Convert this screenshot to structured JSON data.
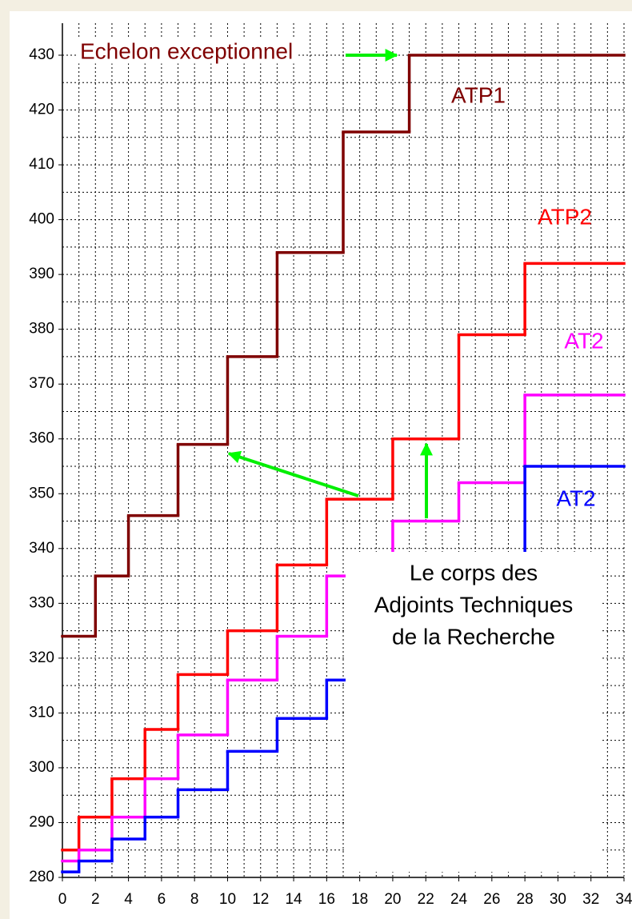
{
  "chart_data": {
    "type": "step",
    "annotations": [
      "Echelon exceptionnel",
      "ATP1",
      "ATP2",
      "AT2",
      "AT2"
    ],
    "box_text": [
      "Le corps des",
      "Adjoints Techniques",
      "de la Recherche"
    ],
    "series": [
      {
        "name": "ATP1",
        "color": "#7f0000",
        "x": [
          0,
          2,
          4,
          7,
          10,
          13,
          17,
          21
        ],
        "values": [
          324,
          335,
          346,
          359,
          375,
          394,
          416,
          430
        ]
      },
      {
        "name": "ATP2",
        "color": "#ff0000",
        "x": [
          0,
          1,
          3,
          5,
          7,
          10,
          13,
          16,
          20,
          24,
          28
        ],
        "values": [
          285,
          291,
          298,
          307,
          317,
          325,
          337,
          349,
          360,
          379,
          392
        ]
      },
      {
        "name": "AT2",
        "color": "#ff00ff",
        "x": [
          0,
          1,
          3,
          5,
          7,
          10,
          13,
          16,
          20,
          24,
          28
        ],
        "values": [
          283,
          285,
          291,
          298,
          306,
          316,
          324,
          335,
          345,
          352,
          368
        ]
      },
      {
        "name": "AT2",
        "color": "#0000ff",
        "x": [
          0,
          1,
          3,
          5,
          7,
          10,
          13,
          16,
          20,
          24,
          28
        ],
        "values": [
          281,
          283,
          287,
          291,
          296,
          303,
          309,
          316,
          325,
          338,
          355
        ]
      }
    ],
    "xlim": [
      0,
      34
    ],
    "xticks": [
      0,
      2,
      4,
      6,
      8,
      10,
      12,
      14,
      16,
      18,
      20,
      22,
      24,
      26,
      28,
      30,
      32,
      34
    ],
    "ylim": [
      280,
      430
    ],
    "yticks": [
      280,
      290,
      300,
      310,
      320,
      330,
      340,
      350,
      360,
      370,
      380,
      390,
      400,
      410,
      420,
      430
    ],
    "grid": true
  }
}
